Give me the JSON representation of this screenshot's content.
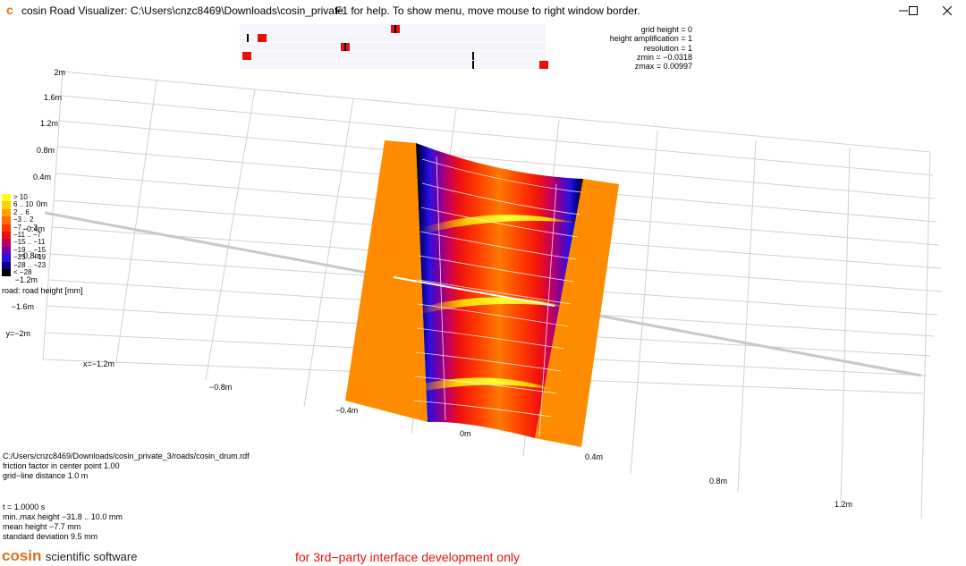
{
  "window": {
    "title": "cosin Road Visualizer: C:\\Users\\cnzc8469\\Downloads\\cosin_private",
    "help": "F1 for help. To show menu, move mouse to right window border."
  },
  "params": {
    "lines": [
      "grid height = 0",
      "height amplification = 1",
      "resolution = 1",
      "zmin = −0.0318",
      "zmax = 0.00997"
    ]
  },
  "legend": {
    "title": "road: road height [mm]",
    "items": [
      {
        "label": "> 10",
        "color": "#ffff14"
      },
      {
        "label": "6 .. 10",
        "color": "#ffd200"
      },
      {
        "label": "2 .. 6",
        "color": "#ffa000"
      },
      {
        "label": "−3 .. 2",
        "color": "#ff7000"
      },
      {
        "label": "−7 .. −3",
        "color": "#ff3800"
      },
      {
        "label": "−11 .. −7",
        "color": "#ee1010"
      },
      {
        "label": "−15 .. −11",
        "color": "#c00060"
      },
      {
        "label": "−19 .. −15",
        "color": "#7000a8"
      },
      {
        "label": "−23 .. −19",
        "color": "#2a10e0"
      },
      {
        "label": "−28 .. −23",
        "color": "#0a0090"
      },
      {
        "label": "< −28",
        "color": "#000000"
      }
    ]
  },
  "axis": {
    "y_labels": [
      "2m",
      "1.6m",
      "1.2m",
      "0.8m",
      "0.4m",
      "0m",
      "−0.4m",
      "−0.8m",
      "−1.2m",
      "−1.6m",
      "y=−2m"
    ],
    "x_labels": [
      "x=−1.2m",
      "−0.8m",
      "−0.4m",
      "0m",
      "0.4m",
      "0.8m",
      "1.2m"
    ]
  },
  "info": {
    "file": "C:/Users/cnzc8469/Downloads/cosin_private_3/roads/cosin_drum.rdf",
    "friction": "friction factor in center point 1.00",
    "grid": "grid−line distance 1.0 m",
    "time": "t = 1.0000 s",
    "minmax": "min..max height −31.8 .. 10.0 mm",
    "mean": "mean height −7.7 mm",
    "std": "standard deviation 9.5 mm"
  },
  "brand": {
    "logo": "cosin",
    "sub": "scientific software"
  },
  "footer": {
    "disclaimer": "for 3rd−party interface development only"
  },
  "colors": {
    "surface_edge": "#ff8c00",
    "marker": "#e8100c",
    "grid": "#cccccc"
  }
}
